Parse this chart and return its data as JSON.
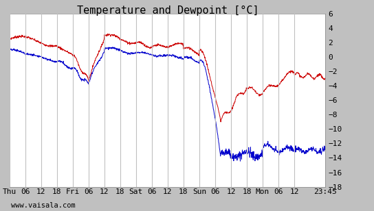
{
  "title": "Temperature and Dewpoint [°C]",
  "ylabel_right_ticks": [
    6,
    4,
    2,
    0,
    -2,
    -4,
    -6,
    -8,
    -10,
    -12,
    -14,
    -16,
    -18
  ],
  "ylim": [
    -18,
    6
  ],
  "temp_color": "#cc0000",
  "dewp_color": "#0000cc",
  "bg_color": "#c0c0c0",
  "plot_bg": "#ffffff",
  "grid_color": "#c0c0c0",
  "footer_text": "www.vaisala.com",
  "xtick_labels": [
    "Thu",
    "06",
    "12",
    "18",
    "Fri",
    "06",
    "12",
    "18",
    "Sat",
    "06",
    "12",
    "18",
    "Sun",
    "06",
    "12",
    "18",
    "Mon",
    "06",
    "12",
    "23:45"
  ],
  "xtick_positions": [
    0,
    6,
    12,
    18,
    24,
    30,
    36,
    42,
    48,
    54,
    60,
    66,
    72,
    78,
    84,
    90,
    96,
    102,
    108,
    119.75
  ],
  "xmin": 0,
  "xmax": 119.75,
  "title_fontsize": 11,
  "tick_fontsize": 8,
  "footer_fontsize": 7.5
}
